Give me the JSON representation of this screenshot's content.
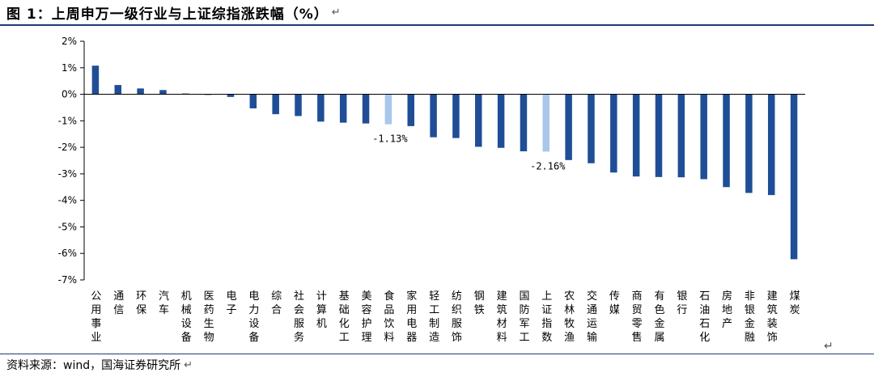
{
  "header": {
    "title": "图 1：上周申万一级行业与上证综指涨跌幅（%）",
    "return_symbol": "↵"
  },
  "footer": {
    "source": "资料来源：wind，国海证券研究所",
    "return_symbol": "↵",
    "end_symbol": "↵"
  },
  "colors": {
    "bar_default": "#1f4e96",
    "bar_highlight": "#a9c6ec",
    "axis": "#000000",
    "rule": "#1f3a7a"
  },
  "chart_data": {
    "type": "bar",
    "ylim": [
      -7,
      2
    ],
    "ytick_labels": [
      "2%",
      "1%",
      "0%",
      "-1%",
      "-2%",
      "-3%",
      "-4%",
      "-5%",
      "-6%",
      "-7%"
    ],
    "ytick_values": [
      2,
      1,
      0,
      -1,
      -2,
      -3,
      -4,
      -5,
      -6,
      -7
    ],
    "grid": false,
    "categories": [
      "公用事业",
      "通信",
      "环保",
      "汽车",
      "机械设备",
      "医药生物",
      "电子",
      "电力设备",
      "综合",
      "社会服务",
      "计算机",
      "基础化工",
      "美容护理",
      "食品饮料",
      "家用电器",
      "轻工制造",
      "纺织服饰",
      "钢铁",
      "建筑材料",
      "国防军工",
      "上证指数",
      "农林牧渔",
      "交通运输",
      "传媒",
      "商贸零售",
      "有色金属",
      "银行",
      "石油石化",
      "房地产",
      "非银金融",
      "建筑装饰",
      "煤炭"
    ],
    "values": [
      1.08,
      0.35,
      0.22,
      0.16,
      0.03,
      0.0,
      -0.1,
      -0.53,
      -0.75,
      -0.82,
      -1.03,
      -1.07,
      -1.1,
      -1.13,
      -1.2,
      -1.62,
      -1.65,
      -1.98,
      -2.02,
      -2.15,
      -2.16,
      -2.48,
      -2.6,
      -2.95,
      -3.1,
      -3.12,
      -3.13,
      -3.2,
      -3.5,
      -3.72,
      -3.8,
      -6.22
    ],
    "highlighted": [
      "食品饮料",
      "上证指数"
    ],
    "annotations": [
      {
        "category": "食品饮料",
        "text": "-1.13%"
      },
      {
        "category": "上证指数",
        "text": "-2.16%"
      }
    ]
  }
}
